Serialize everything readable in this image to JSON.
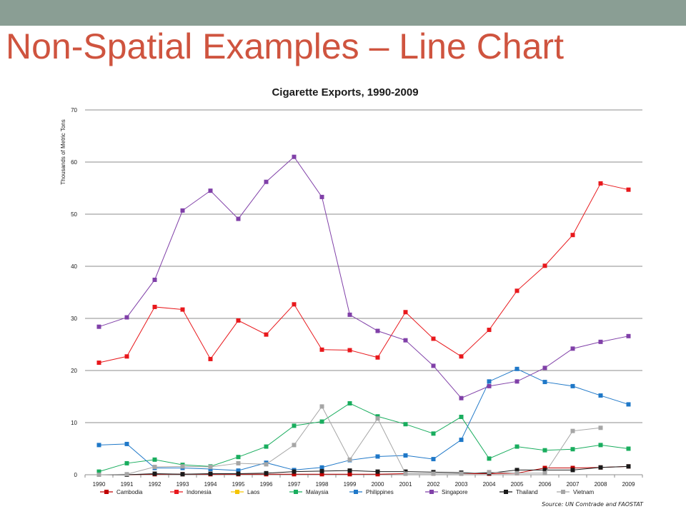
{
  "slide": {
    "title": "Non-Spatial Examples – Line Chart",
    "source": "Source: UN Comtrade and FAOSTAT"
  },
  "colors": {
    "top_bar": "#8a9e94",
    "title": "#cf543f"
  },
  "chart_data": {
    "type": "line",
    "title": "Cigarette Exports, 1990-2009",
    "xlabel": "",
    "ylabel": "Thousands of Metric Tons",
    "ylim": [
      0,
      70
    ],
    "yticks": [
      0,
      10,
      20,
      30,
      40,
      50,
      60,
      70
    ],
    "grid": true,
    "legend": "bottom",
    "x": [
      "1990",
      "1991",
      "1992",
      "1993",
      "1994",
      "1995",
      "1996",
      "1997",
      "1998",
      "1999",
      "2000",
      "2001",
      "2002",
      "2003",
      "2004",
      "2005",
      "2006",
      "2007",
      "2008",
      "2009"
    ],
    "series": [
      {
        "name": "Cambodia",
        "color": "#c00000",
        "values": [
          0,
          0,
          0.1,
          0.1,
          0.1,
          0.1,
          0.1,
          0.1,
          0.1,
          0.1,
          0.1,
          0.2,
          0.2,
          0.2,
          0.2,
          0.3,
          1.3,
          1.3,
          1.4,
          1.6
        ]
      },
      {
        "name": "Indonesia",
        "color": "#e8181c",
        "values": [
          21.5,
          22.7,
          32.2,
          31.7,
          22.2,
          29.6,
          26.9,
          32.7,
          24.0,
          23.9,
          22.5,
          31.2,
          26.1,
          22.7,
          27.8,
          35.3,
          40.1,
          46.0,
          55.9,
          54.7
        ]
      },
      {
        "name": "Laos",
        "color": "#f5c400",
        "values": [
          null,
          null,
          null,
          null,
          null,
          null,
          null,
          null,
          null,
          null,
          null,
          null,
          null,
          null,
          null,
          null,
          null,
          null,
          null,
          null
        ]
      },
      {
        "name": "Malaysia",
        "color": "#19ad5e",
        "values": [
          0.6,
          2.2,
          2.9,
          1.9,
          1.6,
          3.4,
          5.4,
          9.4,
          10.2,
          13.7,
          11.2,
          9.7,
          7.9,
          11.1,
          3.1,
          5.4,
          4.7,
          4.9,
          5.7,
          5.0
        ]
      },
      {
        "name": "Philippines",
        "color": "#1f78c8",
        "values": [
          5.7,
          5.9,
          1.3,
          1.3,
          1.1,
          0.8,
          2.3,
          0.9,
          1.4,
          2.8,
          3.5,
          3.7,
          3.0,
          6.7,
          17.9,
          20.3,
          17.8,
          17.0,
          15.2,
          13.5
        ]
      },
      {
        "name": "Singapore",
        "color": "#8040a8",
        "values": [
          28.4,
          30.2,
          37.4,
          50.7,
          54.5,
          49.1,
          56.2,
          61.0,
          53.3,
          30.7,
          27.6,
          25.8,
          20.9,
          14.7,
          17.0,
          17.9,
          20.5,
          24.2,
          25.5,
          26.6
        ]
      },
      {
        "name": "Thailand",
        "color": "#1a1a1a",
        "values": [
          0,
          0,
          0.2,
          0.1,
          0.2,
          0.2,
          0.3,
          0.6,
          0.7,
          0.8,
          0.6,
          0.6,
          0.5,
          0.4,
          0.3,
          0.9,
          0.9,
          0.9,
          1.4,
          1.6
        ]
      },
      {
        "name": "Vietnam",
        "color": "#a6a6a6",
        "values": [
          0,
          0.1,
          1.5,
          1.6,
          1.5,
          2.2,
          2.0,
          5.7,
          13.1,
          2.9,
          10.8,
          0.2,
          0.2,
          0.2,
          0.5,
          0.3,
          0.3,
          8.4,
          9.0,
          null
        ]
      }
    ]
  }
}
